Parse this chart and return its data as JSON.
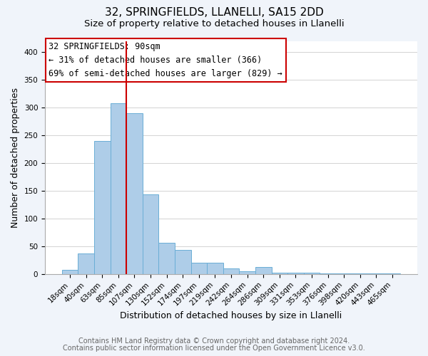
{
  "title": "32, SPRINGFIELDS, LLANELLI, SA15 2DD",
  "subtitle": "Size of property relative to detached houses in Llanelli",
  "xlabel": "Distribution of detached houses by size in Llanelli",
  "ylabel": "Number of detached properties",
  "bar_labels": [
    "18sqm",
    "40sqm",
    "63sqm",
    "85sqm",
    "107sqm",
    "130sqm",
    "152sqm",
    "174sqm",
    "197sqm",
    "219sqm",
    "242sqm",
    "264sqm",
    "286sqm",
    "309sqm",
    "331sqm",
    "353sqm",
    "376sqm",
    "398sqm",
    "420sqm",
    "443sqm",
    "465sqm"
  ],
  "bar_values": [
    8,
    37,
    240,
    308,
    290,
    143,
    56,
    44,
    20,
    20,
    10,
    5,
    13,
    2,
    2,
    2,
    1,
    1,
    1,
    1,
    1
  ],
  "bar_color": "#aecde8",
  "bar_edge_color": "#6aaed6",
  "vline_color": "#cc0000",
  "annotation_box_text": "32 SPRINGFIELDS: 90sqm\n← 31% of detached houses are smaller (366)\n69% of semi-detached houses are larger (829) →",
  "annotation_box_color": "#ffffff",
  "annotation_box_edge_color": "#cc0000",
  "ylim": [
    0,
    420
  ],
  "yticks": [
    0,
    50,
    100,
    150,
    200,
    250,
    300,
    350,
    400
  ],
  "footer_line1": "Contains HM Land Registry data © Crown copyright and database right 2024.",
  "footer_line2": "Contains public sector information licensed under the Open Government Licence v3.0.",
  "bg_color": "#f0f4fa",
  "plot_bg_color": "#ffffff",
  "title_fontsize": 11,
  "subtitle_fontsize": 9.5,
  "axis_label_fontsize": 9,
  "tick_fontsize": 7.5,
  "footer_fontsize": 7,
  "annotation_fontsize": 8.5
}
